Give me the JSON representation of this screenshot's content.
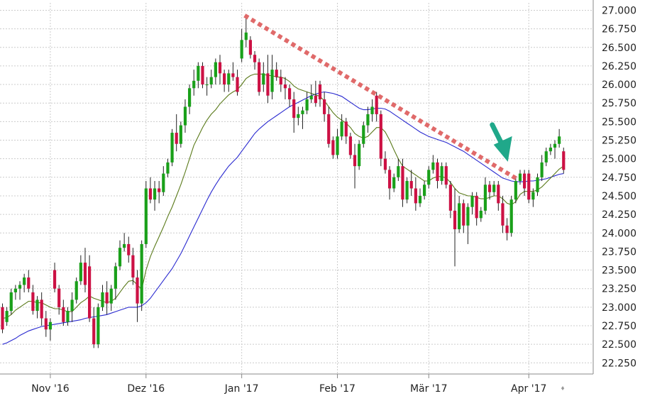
{
  "colors": {
    "bull": "#1aa01a",
    "bear": "#cc1144",
    "ma_short": "#5a7a1a",
    "ma_long": "#2a2ad0",
    "trendline": "#e06a6a",
    "arrow": "#20a88a",
    "grid": "#cccccc",
    "axis": "#888888"
  },
  "chart_data": {
    "type": "candlestick",
    "title": "",
    "xlabel": "",
    "ylabel": "",
    "ylim": [
      22.1,
      27.1
    ],
    "x_tick_labels": [
      "Nov '16",
      "Dez '16",
      "Jan '17",
      "Feb '17",
      "Mär '17",
      "Apr '17"
    ],
    "x_tick_index": [
      11,
      33,
      55,
      77,
      98,
      121
    ],
    "y_ticks": [
      "22.250",
      "22.500",
      "22.750",
      "23.000",
      "23.250",
      "23.500",
      "23.750",
      "24.000",
      "24.250",
      "24.500",
      "24.750",
      "25.000",
      "25.250",
      "25.500",
      "25.750",
      "26.000",
      "26.250",
      "26.500",
      "26.750",
      "27.000"
    ],
    "series": [
      {
        "ohlc": [
          [
            23.0,
            23.05,
            22.65,
            22.7
          ],
          [
            22.8,
            23.0,
            22.75,
            22.95
          ],
          [
            22.95,
            23.25,
            22.9,
            23.2
          ],
          [
            23.2,
            23.3,
            23.1,
            23.25
          ],
          [
            23.25,
            23.35,
            23.1,
            23.3
          ],
          [
            23.3,
            23.45,
            23.2,
            23.4
          ],
          [
            23.4,
            23.5,
            23.2,
            23.25
          ],
          [
            23.2,
            23.3,
            22.9,
            22.95
          ],
          [
            22.95,
            23.15,
            22.85,
            23.1
          ],
          [
            23.1,
            23.2,
            22.75,
            22.85
          ],
          [
            22.85,
            22.95,
            22.6,
            22.7
          ],
          [
            22.7,
            22.85,
            22.55,
            22.8
          ],
          [
            23.5,
            23.6,
            23.2,
            23.25
          ],
          [
            23.25,
            23.3,
            22.9,
            23.0
          ],
          [
            23.0,
            23.1,
            22.75,
            22.8
          ],
          [
            22.8,
            23.0,
            22.75,
            22.95
          ],
          [
            22.95,
            23.2,
            22.8,
            23.1
          ],
          [
            23.1,
            23.4,
            23.05,
            23.35
          ],
          [
            23.35,
            23.7,
            23.3,
            23.6
          ],
          [
            23.6,
            23.8,
            23.2,
            23.3
          ],
          [
            23.55,
            23.7,
            22.8,
            22.85
          ],
          [
            22.85,
            23.0,
            22.45,
            22.5
          ],
          [
            22.5,
            23.05,
            22.45,
            23.0
          ],
          [
            23.0,
            23.3,
            22.95,
            23.2
          ],
          [
            23.2,
            23.35,
            22.9,
            23.05
          ],
          [
            23.05,
            23.3,
            22.95,
            23.25
          ],
          [
            23.25,
            23.6,
            23.1,
            23.55
          ],
          [
            23.55,
            23.9,
            23.5,
            23.8
          ],
          [
            23.8,
            24.0,
            23.75,
            23.85
          ],
          [
            23.85,
            23.95,
            23.6,
            23.7
          ],
          [
            23.7,
            23.8,
            23.3,
            23.4
          ],
          [
            23.4,
            23.5,
            22.8,
            23.05
          ],
          [
            23.05,
            23.9,
            22.95,
            23.85
          ],
          [
            23.85,
            24.7,
            23.8,
            24.6
          ],
          [
            24.6,
            24.75,
            24.4,
            24.45
          ],
          [
            24.45,
            24.7,
            24.3,
            24.6
          ],
          [
            24.6,
            24.7,
            24.4,
            24.55
          ],
          [
            24.55,
            24.9,
            24.5,
            24.8
          ],
          [
            24.8,
            25.0,
            24.75,
            24.95
          ],
          [
            24.95,
            25.4,
            24.9,
            25.35
          ],
          [
            25.35,
            25.6,
            25.1,
            25.2
          ],
          [
            25.2,
            25.5,
            25.15,
            25.45
          ],
          [
            25.45,
            25.8,
            25.35,
            25.7
          ],
          [
            25.7,
            26.0,
            25.6,
            25.95
          ],
          [
            25.95,
            26.2,
            25.85,
            26.05
          ],
          [
            26.05,
            26.3,
            25.95,
            26.25
          ],
          [
            26.25,
            26.3,
            25.95,
            26.0
          ],
          [
            26.0,
            26.1,
            25.85,
            26.0
          ],
          [
            26.0,
            26.2,
            25.95,
            26.1
          ],
          [
            26.1,
            26.35,
            26.0,
            26.3
          ],
          [
            26.3,
            26.4,
            26.0,
            26.15
          ],
          [
            26.15,
            26.2,
            25.9,
            26.0
          ],
          [
            26.0,
            26.2,
            25.9,
            26.15
          ],
          [
            26.15,
            26.3,
            26.05,
            26.1
          ],
          [
            26.1,
            26.2,
            25.85,
            25.9
          ],
          [
            26.35,
            26.75,
            26.3,
            26.6
          ],
          [
            26.6,
            26.9,
            26.5,
            26.7
          ],
          [
            26.6,
            26.65,
            26.35,
            26.4
          ],
          [
            26.4,
            26.45,
            26.2,
            26.3
          ],
          [
            26.3,
            26.35,
            25.85,
            25.9
          ],
          [
            26.0,
            26.3,
            25.9,
            26.15
          ],
          [
            26.15,
            26.4,
            25.75,
            25.85
          ],
          [
            25.9,
            26.4,
            25.8,
            26.2
          ],
          [
            26.2,
            26.3,
            26.05,
            26.1
          ],
          [
            26.1,
            26.2,
            25.9,
            26.0
          ],
          [
            26.0,
            26.1,
            25.8,
            25.95
          ],
          [
            25.95,
            26.0,
            25.7,
            25.8
          ],
          [
            25.8,
            25.9,
            25.35,
            25.55
          ],
          [
            25.55,
            25.7,
            25.45,
            25.6
          ],
          [
            25.6,
            25.7,
            25.4,
            25.65
          ],
          [
            25.65,
            25.9,
            25.6,
            25.8
          ],
          [
            25.8,
            26.0,
            25.75,
            25.85
          ],
          [
            25.85,
            26.05,
            25.7,
            25.75
          ],
          [
            26.0,
            26.05,
            25.7,
            25.8
          ],
          [
            25.8,
            25.9,
            25.5,
            25.6
          ],
          [
            25.6,
            25.7,
            25.15,
            25.2
          ],
          [
            25.25,
            25.3,
            25.0,
            25.05
          ],
          [
            25.05,
            25.4,
            25.0,
            25.3
          ],
          [
            25.3,
            25.6,
            25.25,
            25.5
          ],
          [
            25.5,
            25.55,
            25.2,
            25.3
          ],
          [
            25.3,
            25.35,
            25.0,
            25.05
          ],
          [
            25.05,
            25.2,
            24.6,
            24.9
          ],
          [
            24.9,
            25.25,
            24.85,
            25.2
          ],
          [
            25.2,
            25.5,
            25.15,
            25.45
          ],
          [
            25.45,
            25.7,
            25.35,
            25.6
          ],
          [
            25.6,
            25.8,
            25.5,
            25.7
          ],
          [
            25.85,
            25.9,
            25.5,
            25.6
          ],
          [
            25.6,
            25.65,
            24.9,
            25.0
          ],
          [
            25.0,
            25.1,
            24.8,
            24.85
          ],
          [
            24.85,
            24.9,
            24.45,
            24.6
          ],
          [
            24.6,
            24.8,
            24.55,
            24.75
          ],
          [
            24.75,
            25.0,
            24.7,
            24.9
          ],
          [
            24.9,
            25.0,
            24.35,
            24.45
          ],
          [
            24.45,
            24.75,
            24.4,
            24.7
          ],
          [
            24.7,
            24.85,
            24.5,
            24.6
          ],
          [
            24.6,
            24.75,
            24.3,
            24.4
          ],
          [
            24.4,
            24.6,
            24.35,
            24.5
          ],
          [
            24.5,
            24.7,
            24.45,
            24.65
          ],
          [
            24.65,
            24.9,
            24.6,
            24.85
          ],
          [
            24.85,
            25.05,
            24.8,
            24.95
          ],
          [
            24.95,
            25.0,
            24.6,
            24.7
          ],
          [
            24.7,
            24.95,
            24.65,
            24.9
          ],
          [
            24.9,
            24.95,
            24.6,
            24.65
          ],
          [
            24.65,
            24.7,
            24.2,
            24.3
          ],
          [
            24.3,
            24.6,
            23.55,
            24.05
          ],
          [
            24.05,
            24.5,
            24.0,
            24.4
          ],
          [
            24.4,
            24.45,
            24.0,
            24.1
          ],
          [
            24.1,
            24.4,
            23.85,
            24.35
          ],
          [
            24.35,
            24.55,
            24.25,
            24.5
          ],
          [
            24.5,
            24.55,
            24.1,
            24.2
          ],
          [
            24.2,
            24.35,
            24.15,
            24.3
          ],
          [
            24.3,
            24.75,
            24.25,
            24.65
          ],
          [
            24.65,
            24.7,
            24.45,
            24.55
          ],
          [
            24.55,
            24.7,
            24.5,
            24.65
          ],
          [
            24.65,
            24.7,
            24.3,
            24.4
          ],
          [
            24.4,
            24.5,
            24.0,
            24.1
          ],
          [
            24.1,
            24.2,
            23.9,
            24.0
          ],
          [
            24.0,
            24.5,
            23.95,
            24.45
          ],
          [
            24.45,
            24.75,
            24.4,
            24.7
          ],
          [
            24.7,
            24.85,
            24.65,
            24.8
          ],
          [
            24.8,
            24.85,
            24.5,
            24.6
          ],
          [
            24.8,
            24.85,
            24.4,
            24.45
          ],
          [
            24.45,
            24.6,
            24.35,
            24.55
          ],
          [
            24.55,
            24.8,
            24.5,
            24.75
          ],
          [
            24.75,
            25.05,
            24.7,
            24.95
          ],
          [
            24.95,
            25.15,
            24.9,
            25.1
          ],
          [
            25.1,
            25.2,
            25.05,
            25.15
          ],
          [
            25.15,
            25.25,
            25.0,
            25.2
          ],
          [
            25.2,
            25.4,
            25.15,
            25.3
          ],
          [
            25.1,
            25.15,
            24.8,
            24.85
          ]
        ]
      },
      {
        "name": "",
        "values": [
          22.85,
          22.86,
          22.9,
          22.96,
          23.0,
          23.04,
          23.08,
          23.08,
          23.06,
          23.06,
          23.03,
          23.0,
          22.98,
          22.98,
          22.96,
          22.94,
          22.94,
          23.0,
          23.06,
          23.1,
          23.15,
          23.12,
          23.1,
          23.08,
          23.06,
          23.08,
          23.12,
          23.2,
          23.28,
          23.35,
          23.36,
          23.3,
          23.24,
          23.5,
          23.68,
          23.82,
          23.95,
          24.08,
          24.22,
          24.35,
          24.5,
          24.65,
          24.82,
          25.0,
          25.18,
          25.3,
          25.42,
          25.52,
          25.6,
          25.66,
          25.74,
          25.8,
          25.86,
          25.9,
          25.93,
          26.0,
          26.08,
          26.12,
          26.14,
          26.14,
          26.14,
          26.12,
          26.12,
          26.1,
          26.1,
          26.08,
          26.04,
          25.98,
          25.94,
          25.92,
          25.9,
          25.88,
          25.86,
          25.84,
          25.78,
          25.7,
          25.62,
          25.56,
          25.52,
          25.48,
          25.42,
          25.34,
          25.3,
          25.28,
          25.3,
          25.36,
          25.42,
          25.42,
          25.36,
          25.25,
          25.12,
          25.0,
          24.9,
          24.86,
          24.82,
          24.78,
          24.74,
          24.7,
          24.7,
          24.74,
          24.76,
          24.76,
          24.74,
          24.68,
          24.6,
          24.54,
          24.52,
          24.5,
          24.5,
          24.48,
          24.46,
          24.46,
          24.48,
          24.5,
          24.5,
          24.46,
          24.4,
          24.38,
          24.42,
          24.52,
          24.56,
          24.56,
          24.56,
          24.58,
          24.62,
          24.68,
          24.74,
          24.8,
          24.86,
          24.9
        ]
      },
      {
        "name": "",
        "values": [
          22.5,
          22.52,
          22.55,
          22.58,
          22.62,
          22.65,
          22.68,
          22.7,
          22.72,
          22.74,
          22.75,
          22.76,
          22.77,
          22.78,
          22.79,
          22.8,
          22.81,
          22.82,
          22.83,
          22.85,
          22.86,
          22.87,
          22.88,
          22.89,
          22.9,
          22.92,
          22.94,
          22.96,
          22.98,
          23.0,
          23.0,
          23.0,
          23.02,
          23.06,
          23.12,
          23.2,
          23.28,
          23.36,
          23.44,
          23.52,
          23.62,
          23.72,
          23.84,
          23.96,
          24.08,
          24.2,
          24.32,
          24.44,
          24.55,
          24.65,
          24.74,
          24.82,
          24.9,
          24.96,
          25.02,
          25.1,
          25.18,
          25.26,
          25.34,
          25.4,
          25.45,
          25.5,
          25.54,
          25.58,
          25.62,
          25.66,
          25.7,
          25.73,
          25.76,
          25.79,
          25.82,
          25.85,
          25.87,
          25.89,
          25.9,
          25.89,
          25.88,
          25.86,
          25.84,
          25.8,
          25.76,
          25.72,
          25.68,
          25.66,
          25.66,
          25.67,
          25.68,
          25.68,
          25.67,
          25.64,
          25.6,
          25.56,
          25.52,
          25.48,
          25.44,
          25.4,
          25.36,
          25.33,
          25.3,
          25.28,
          25.26,
          25.24,
          25.22,
          25.19,
          25.16,
          25.13,
          25.1,
          25.06,
          25.02,
          24.98,
          24.94,
          24.9,
          24.86,
          24.82,
          24.78,
          24.74,
          24.72,
          24.7,
          24.69,
          24.69,
          24.69,
          24.7,
          24.7,
          24.71,
          24.72,
          24.73,
          24.75,
          24.77,
          24.79,
          24.8
        ]
      }
    ]
  }
}
